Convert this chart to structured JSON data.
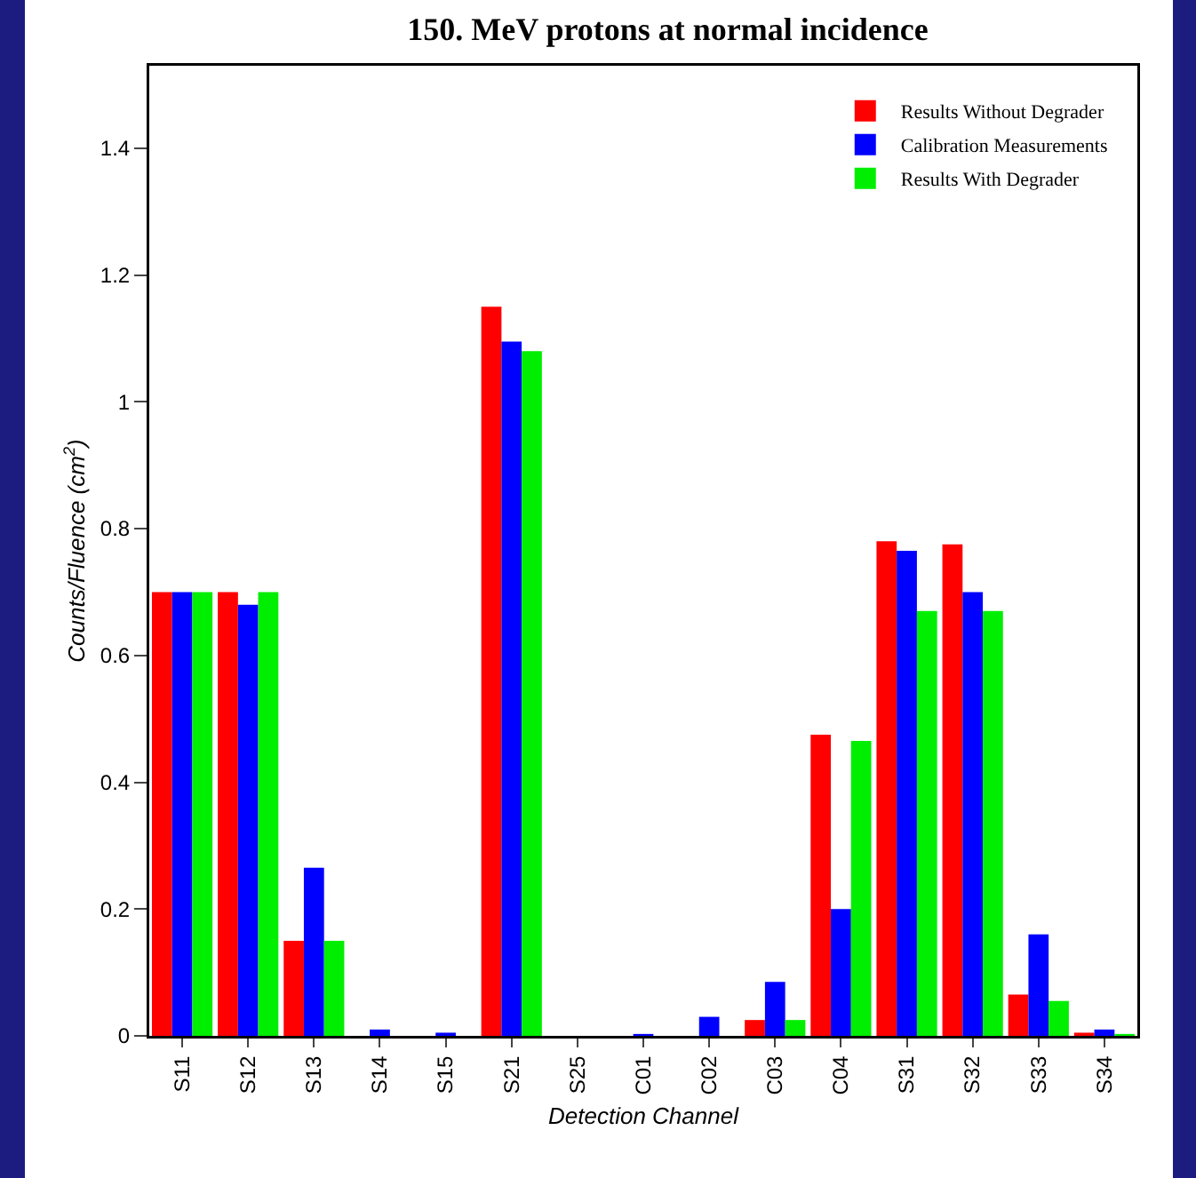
{
  "chart_data": {
    "type": "bar",
    "title": "150. MeV protons at normal incidence",
    "xlabel": "Detection Channel",
    "ylabel": "Counts/Fluence (cm$^{2}$)",
    "categories": [
      "S11",
      "S12",
      "S13",
      "S14",
      "S15",
      "S21",
      "S25",
      "C01",
      "C02",
      "C03",
      "C04",
      "S31",
      "S32",
      "S33",
      "S34"
    ],
    "series": [
      {
        "name": "Results Without Degrader",
        "color": "#ff0000",
        "values": [
          0.7,
          0.7,
          0.15,
          0,
          0,
          1.15,
          0,
          0,
          0,
          0.025,
          0.475,
          0.78,
          0.775,
          0.065,
          0.005
        ]
      },
      {
        "name": "Calibration Measurements",
        "color": "#0000ff",
        "values": [
          0.7,
          0.68,
          0.265,
          0.01,
          0.005,
          1.095,
          0,
          0.003,
          0.03,
          0.085,
          0.2,
          0.765,
          0.7,
          0.16,
          0.01
        ]
      },
      {
        "name": "Results With Degrader",
        "color": "#00ee00",
        "values": [
          0.7,
          0.7,
          0.15,
          0,
          0,
          1.08,
          0,
          0,
          0,
          0.025,
          0.465,
          0.67,
          0.67,
          0.055,
          0.003
        ]
      }
    ],
    "ylim": [
      0,
      1.53
    ],
    "yticks": [
      0,
      0.2,
      0.4,
      0.6,
      0.8,
      1,
      1.2,
      1.4
    ],
    "grid": false,
    "legend": "top right"
  }
}
